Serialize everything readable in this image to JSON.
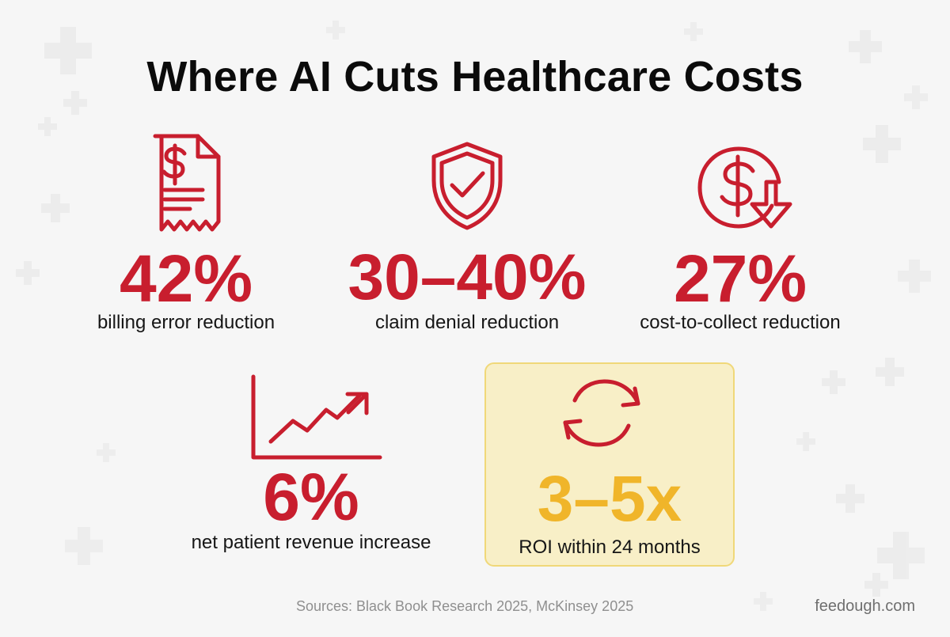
{
  "page": {
    "title": "Where AI Cuts Healthcare Costs",
    "sources": "Sources: Black Book Research 2025, McKinsey 2025",
    "site": "feedough.com"
  },
  "colors": {
    "background": "#f6f6f6",
    "title": "#0b0b0b",
    "accent_red": "#c81e2e",
    "highlight_fill": "#f8efc7",
    "highlight_border": "#f0d879",
    "highlight_value": "#f0b52a",
    "muted_text": "#8f8f8f"
  },
  "stats": [
    {
      "icon": "invoice-dollar-icon",
      "value": "42%",
      "label": "billing error reduction"
    },
    {
      "icon": "shield-check-icon",
      "value": "30–40%",
      "label": "claim denial reduction"
    },
    {
      "icon": "dollar-down-arrow-icon",
      "value": "27%",
      "label": "cost-to-collect reduction"
    },
    {
      "icon": "trend-up-chart-icon",
      "value": "6%",
      "label": "net patient revenue increase"
    },
    {
      "icon": "refresh-cycle-icon",
      "value": "3–5x",
      "label": "ROI within 24 months"
    }
  ]
}
